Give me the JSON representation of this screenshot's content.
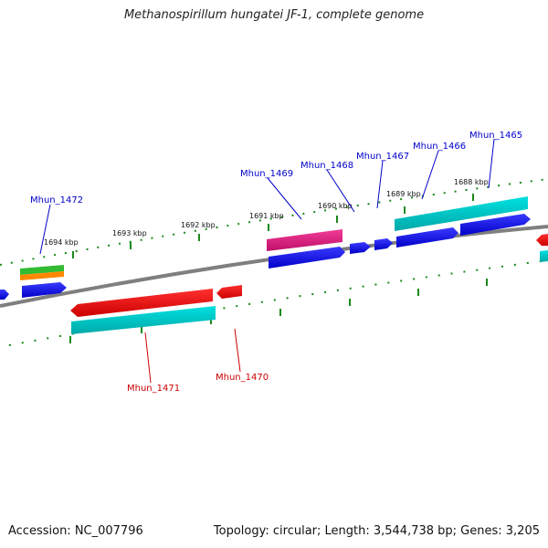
{
  "title": "Methanospirillum hungatei JF-1, complete genome",
  "footer": {
    "accession": "Accession: NC_007796",
    "summary": "Topology: circular; Length: 3,544,738 bp; Genes: 3,205"
  },
  "scale_labels": [
    "1694 kbp",
    "1693 kbp",
    "1692 kbp",
    "1691 kbp",
    "1690 kbp",
    "1689 kbp",
    "1688 kbp"
  ],
  "gene_labels_top": [
    "Mhun_1472",
    "Mhun_1469",
    "Mhun_1468",
    "Mhun_1467",
    "Mhun_1466",
    "Mhun_1465"
  ],
  "gene_labels_bottom": [
    "Mhun_1471",
    "Mhun_1470"
  ],
  "colors": {
    "top_label": "#0000cc",
    "bottom_label": "#cc0000",
    "backbone": "#808080",
    "tick": "#1a8a1a",
    "blue": "#0000ff",
    "cyan": "#00cccc",
    "red": "#ff0000",
    "pink": "#e6187f",
    "green": "#33bb33",
    "orange": "#ff8800"
  }
}
